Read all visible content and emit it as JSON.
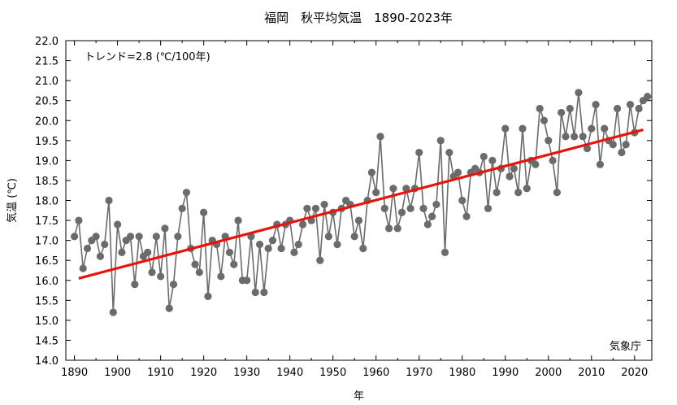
{
  "chart_data": {
    "type": "line",
    "title": "福岡　秋平均気温　1890-2023年",
    "xlabel": "年",
    "ylabel": "気温 (℃)",
    "trend_label": "トレンド=2.8 (℃/100年)",
    "source": "気象庁",
    "xlim": [
      1888,
      2024
    ],
    "ylim": [
      14.0,
      22.0
    ],
    "x_ticks": [
      "1890",
      "1900",
      "1910",
      "1920",
      "1930",
      "1940",
      "1950",
      "1960",
      "1970",
      "1980",
      "1990",
      "2000",
      "2010",
      "2020"
    ],
    "y_ticks": [
      "14.0",
      "14.5",
      "15.0",
      "15.5",
      "16.0",
      "16.5",
      "17.0",
      "17.5",
      "18.0",
      "18.5",
      "19.0",
      "19.5",
      "20.0",
      "20.5",
      "21.0",
      "21.5",
      "22.0"
    ],
    "grid": false,
    "series": [
      {
        "kind": "observed",
        "color": "#6b6b6b",
        "x": [
          1890,
          1891,
          1892,
          1893,
          1894,
          1895,
          1896,
          1897,
          1898,
          1899,
          1900,
          1901,
          1902,
          1903,
          1904,
          1905,
          1906,
          1907,
          1908,
          1909,
          1910,
          1911,
          1912,
          1913,
          1914,
          1915,
          1916,
          1917,
          1918,
          1919,
          1920,
          1921,
          1922,
          1923,
          1924,
          1925,
          1926,
          1927,
          1928,
          1929,
          1930,
          1931,
          1932,
          1933,
          1934,
          1935,
          1936,
          1937,
          1938,
          1939,
          1940,
          1941,
          1942,
          1943,
          1944,
          1945,
          1946,
          1947,
          1948,
          1949,
          1950,
          1951,
          1952,
          1953,
          1954,
          1955,
          1956,
          1957,
          1958,
          1959,
          1960,
          1961,
          1962,
          1963,
          1964,
          1965,
          1966,
          1967,
          1968,
          1969,
          1970,
          1971,
          1972,
          1973,
          1974,
          1975,
          1976,
          1977,
          1978,
          1979,
          1980,
          1981,
          1982,
          1983,
          1984,
          1985,
          1986,
          1987,
          1988,
          1989,
          1990,
          1991,
          1992,
          1993,
          1994,
          1995,
          1996,
          1997,
          1998,
          1999,
          2000,
          2001,
          2002,
          2003,
          2004,
          2005,
          2006,
          2007,
          2008,
          2009,
          2010,
          2011,
          2012,
          2013,
          2014,
          2015,
          2016,
          2017,
          2018,
          2019,
          2020,
          2021,
          2022,
          2023
        ],
        "values": [
          17.1,
          17.5,
          16.3,
          16.8,
          17.0,
          17.1,
          16.6,
          16.9,
          18.0,
          15.2,
          17.4,
          16.7,
          17.0,
          17.1,
          15.9,
          17.1,
          16.6,
          16.7,
          16.2,
          17.1,
          16.1,
          17.3,
          15.3,
          15.9,
          17.1,
          17.8,
          18.2,
          16.8,
          16.4,
          16.2,
          17.7,
          15.6,
          17.0,
          16.9,
          16.1,
          17.1,
          16.7,
          16.4,
          17.5,
          16.0,
          16.0,
          17.1,
          15.7,
          16.9,
          15.7,
          16.8,
          17.0,
          17.4,
          16.8,
          17.4,
          17.5,
          16.7,
          16.9,
          17.4,
          17.8,
          17.5,
          17.8,
          16.5,
          17.9,
          17.1,
          17.7,
          16.9,
          17.8,
          18.0,
          17.9,
          17.1,
          17.5,
          16.8,
          18.0,
          18.7,
          18.2,
          19.6,
          17.8,
          17.3,
          18.3,
          17.3,
          17.7,
          18.3,
          17.8,
          18.3,
          19.2,
          17.8,
          17.4,
          17.6,
          17.9,
          19.5,
          16.7,
          19.2,
          18.6,
          18.7,
          18.0,
          17.6,
          18.7,
          18.8,
          18.7,
          19.1,
          17.8,
          19.0,
          18.2,
          18.8,
          19.8,
          18.6,
          18.8,
          18.2,
          19.8,
          18.3,
          19.0,
          18.9,
          20.3,
          20.0,
          19.5,
          19.0,
          18.2,
          20.2,
          19.6,
          20.3,
          19.6,
          20.7,
          19.6,
          19.3,
          19.8,
          20.4,
          18.9,
          19.8,
          19.5,
          19.4,
          20.3,
          19.2,
          19.4,
          20.4,
          19.7,
          20.3,
          20.5,
          20.6
        ]
      },
      {
        "kind": "trend",
        "color": "#e8140c",
        "x": [
          1891,
          2022
        ],
        "values": [
          16.05,
          19.77
        ]
      }
    ]
  }
}
